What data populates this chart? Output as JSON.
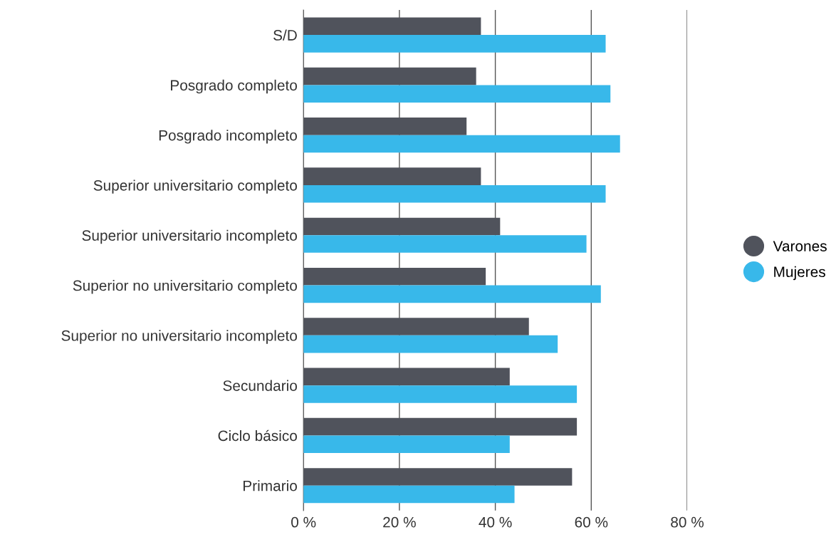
{
  "chart_data": {
    "type": "bar",
    "orientation": "horizontal",
    "categories": [
      "S/D",
      "Posgrado completo",
      "Posgrado incompleto",
      "Superior universitario completo",
      "Superior universitario incompleto",
      "Superior no universitario completo",
      "Superior no universitario incompleto",
      "Secundario",
      "Ciclo básico",
      "Primario"
    ],
    "series": [
      {
        "name": "Varones",
        "color": "#50535c",
        "values": [
          37,
          36,
          34,
          37,
          41,
          38,
          47,
          43,
          57,
          56
        ]
      },
      {
        "name": "Mujeres",
        "color": "#38b8ea",
        "values": [
          63,
          64,
          66,
          63,
          59,
          62,
          53,
          57,
          43,
          44
        ]
      }
    ],
    "xlim": [
      0,
      80
    ],
    "xticks": [
      {
        "value": 0,
        "label": "0 %"
      },
      {
        "value": 20,
        "label": "20 %"
      },
      {
        "value": 40,
        "label": "40 %"
      },
      {
        "value": 60,
        "label": "60 %"
      },
      {
        "value": 80,
        "label": "80 %"
      }
    ],
    "grid": "x",
    "legend": "right"
  }
}
